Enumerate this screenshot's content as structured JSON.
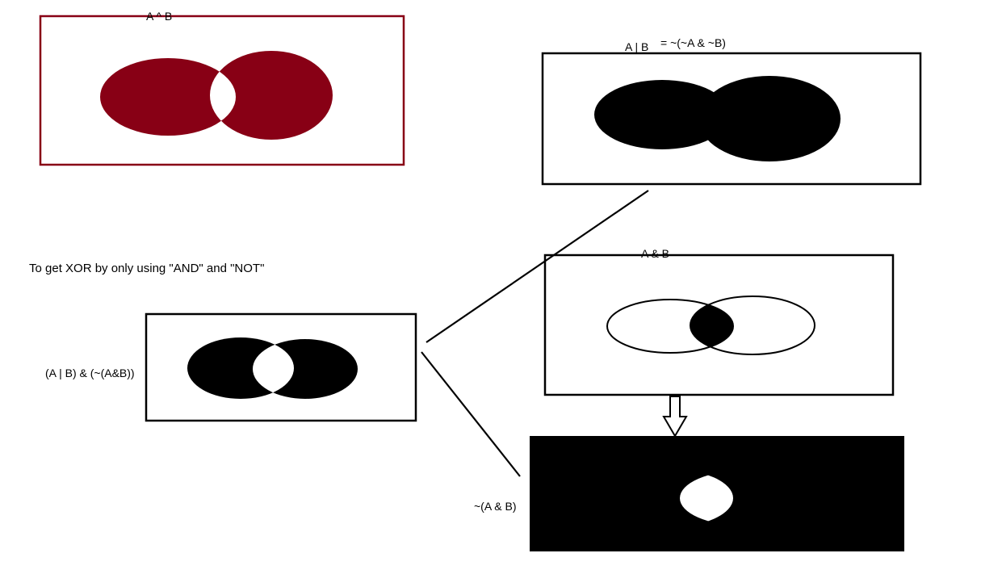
{
  "diagram": {
    "title_note": "To get XOR by only using \"AND\" and \"NOT\"",
    "colors": {
      "xor_fill": "#880015",
      "xor_border": "#880015",
      "black": "#000000",
      "white": "#ffffff"
    },
    "panels": {
      "xor": {
        "label": "A ^ B"
      },
      "or": {
        "label": "A | B",
        "equation": "= ~(~A & ~B)"
      },
      "and": {
        "label": "A & B"
      },
      "nand": {
        "label": "~(A & B)"
      },
      "combined": {
        "label": "(A | B) & (~(A&B))"
      }
    },
    "connectors": [
      {
        "from": "or",
        "to": "combined",
        "kind": "line"
      },
      {
        "from": "combined",
        "to": "nand",
        "kind": "line"
      },
      {
        "from": "and",
        "to": "nand",
        "kind": "hollow-arrow"
      }
    ]
  }
}
